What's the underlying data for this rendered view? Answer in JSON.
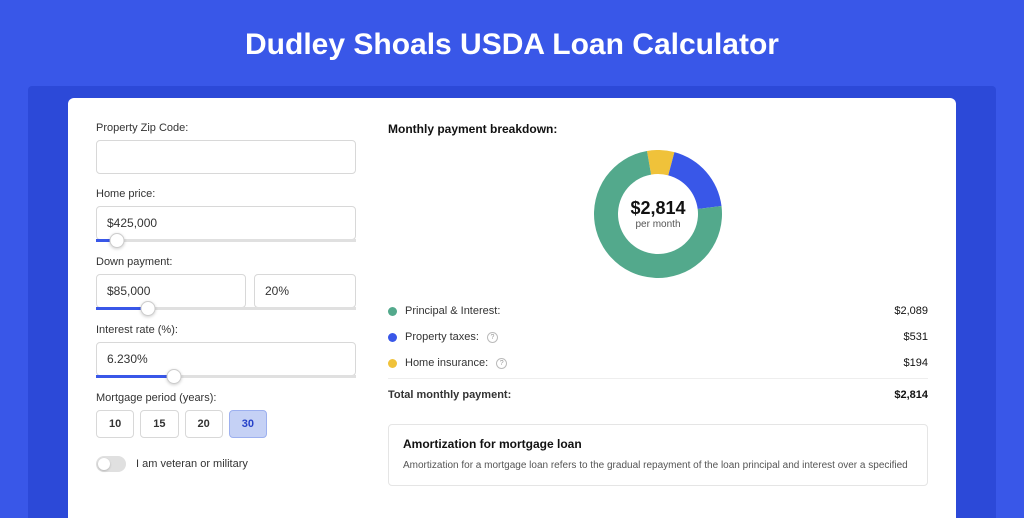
{
  "page_title": "Dudley Shoals USDA Loan Calculator",
  "form": {
    "zip": {
      "label": "Property Zip Code:",
      "value": ""
    },
    "home_price": {
      "label": "Home price:",
      "value": "$425,000",
      "slider_pct": 8
    },
    "down_payment": {
      "label": "Down payment:",
      "amount": "$85,000",
      "percent": "20%",
      "slider_pct": 20
    },
    "interest_rate": {
      "label": "Interest rate (%):",
      "value": "6.230%",
      "slider_pct": 30
    },
    "mortgage_period": {
      "label": "Mortgage period (years):",
      "options": [
        "10",
        "15",
        "20",
        "30"
      ],
      "active_index": 3
    },
    "veteran": {
      "label": "I am veteran or military",
      "on": false
    }
  },
  "breakdown": {
    "title": "Monthly payment breakdown:",
    "center_amount": "$2,814",
    "center_sub": "per month",
    "donut": {
      "values": [
        2089,
        531,
        194
      ],
      "colors": [
        "#53a98c",
        "#3957e8",
        "#f0c23a"
      ],
      "inner_radius": 40,
      "outer_radius": 64,
      "background": "#ffffff"
    },
    "items": [
      {
        "label": "Principal & Interest:",
        "value": "$2,089",
        "color": "#53a98c",
        "info": false
      },
      {
        "label": "Property taxes:",
        "value": "$531",
        "color": "#3957e8",
        "info": true
      },
      {
        "label": "Home insurance:",
        "value": "$194",
        "color": "#f0c23a",
        "info": true
      }
    ],
    "total": {
      "label": "Total monthly payment:",
      "value": "$2,814"
    }
  },
  "amortization": {
    "title": "Amortization for mortgage loan",
    "text": "Amortization for a mortgage loan refers to the gradual repayment of the loan principal and interest over a specified"
  }
}
